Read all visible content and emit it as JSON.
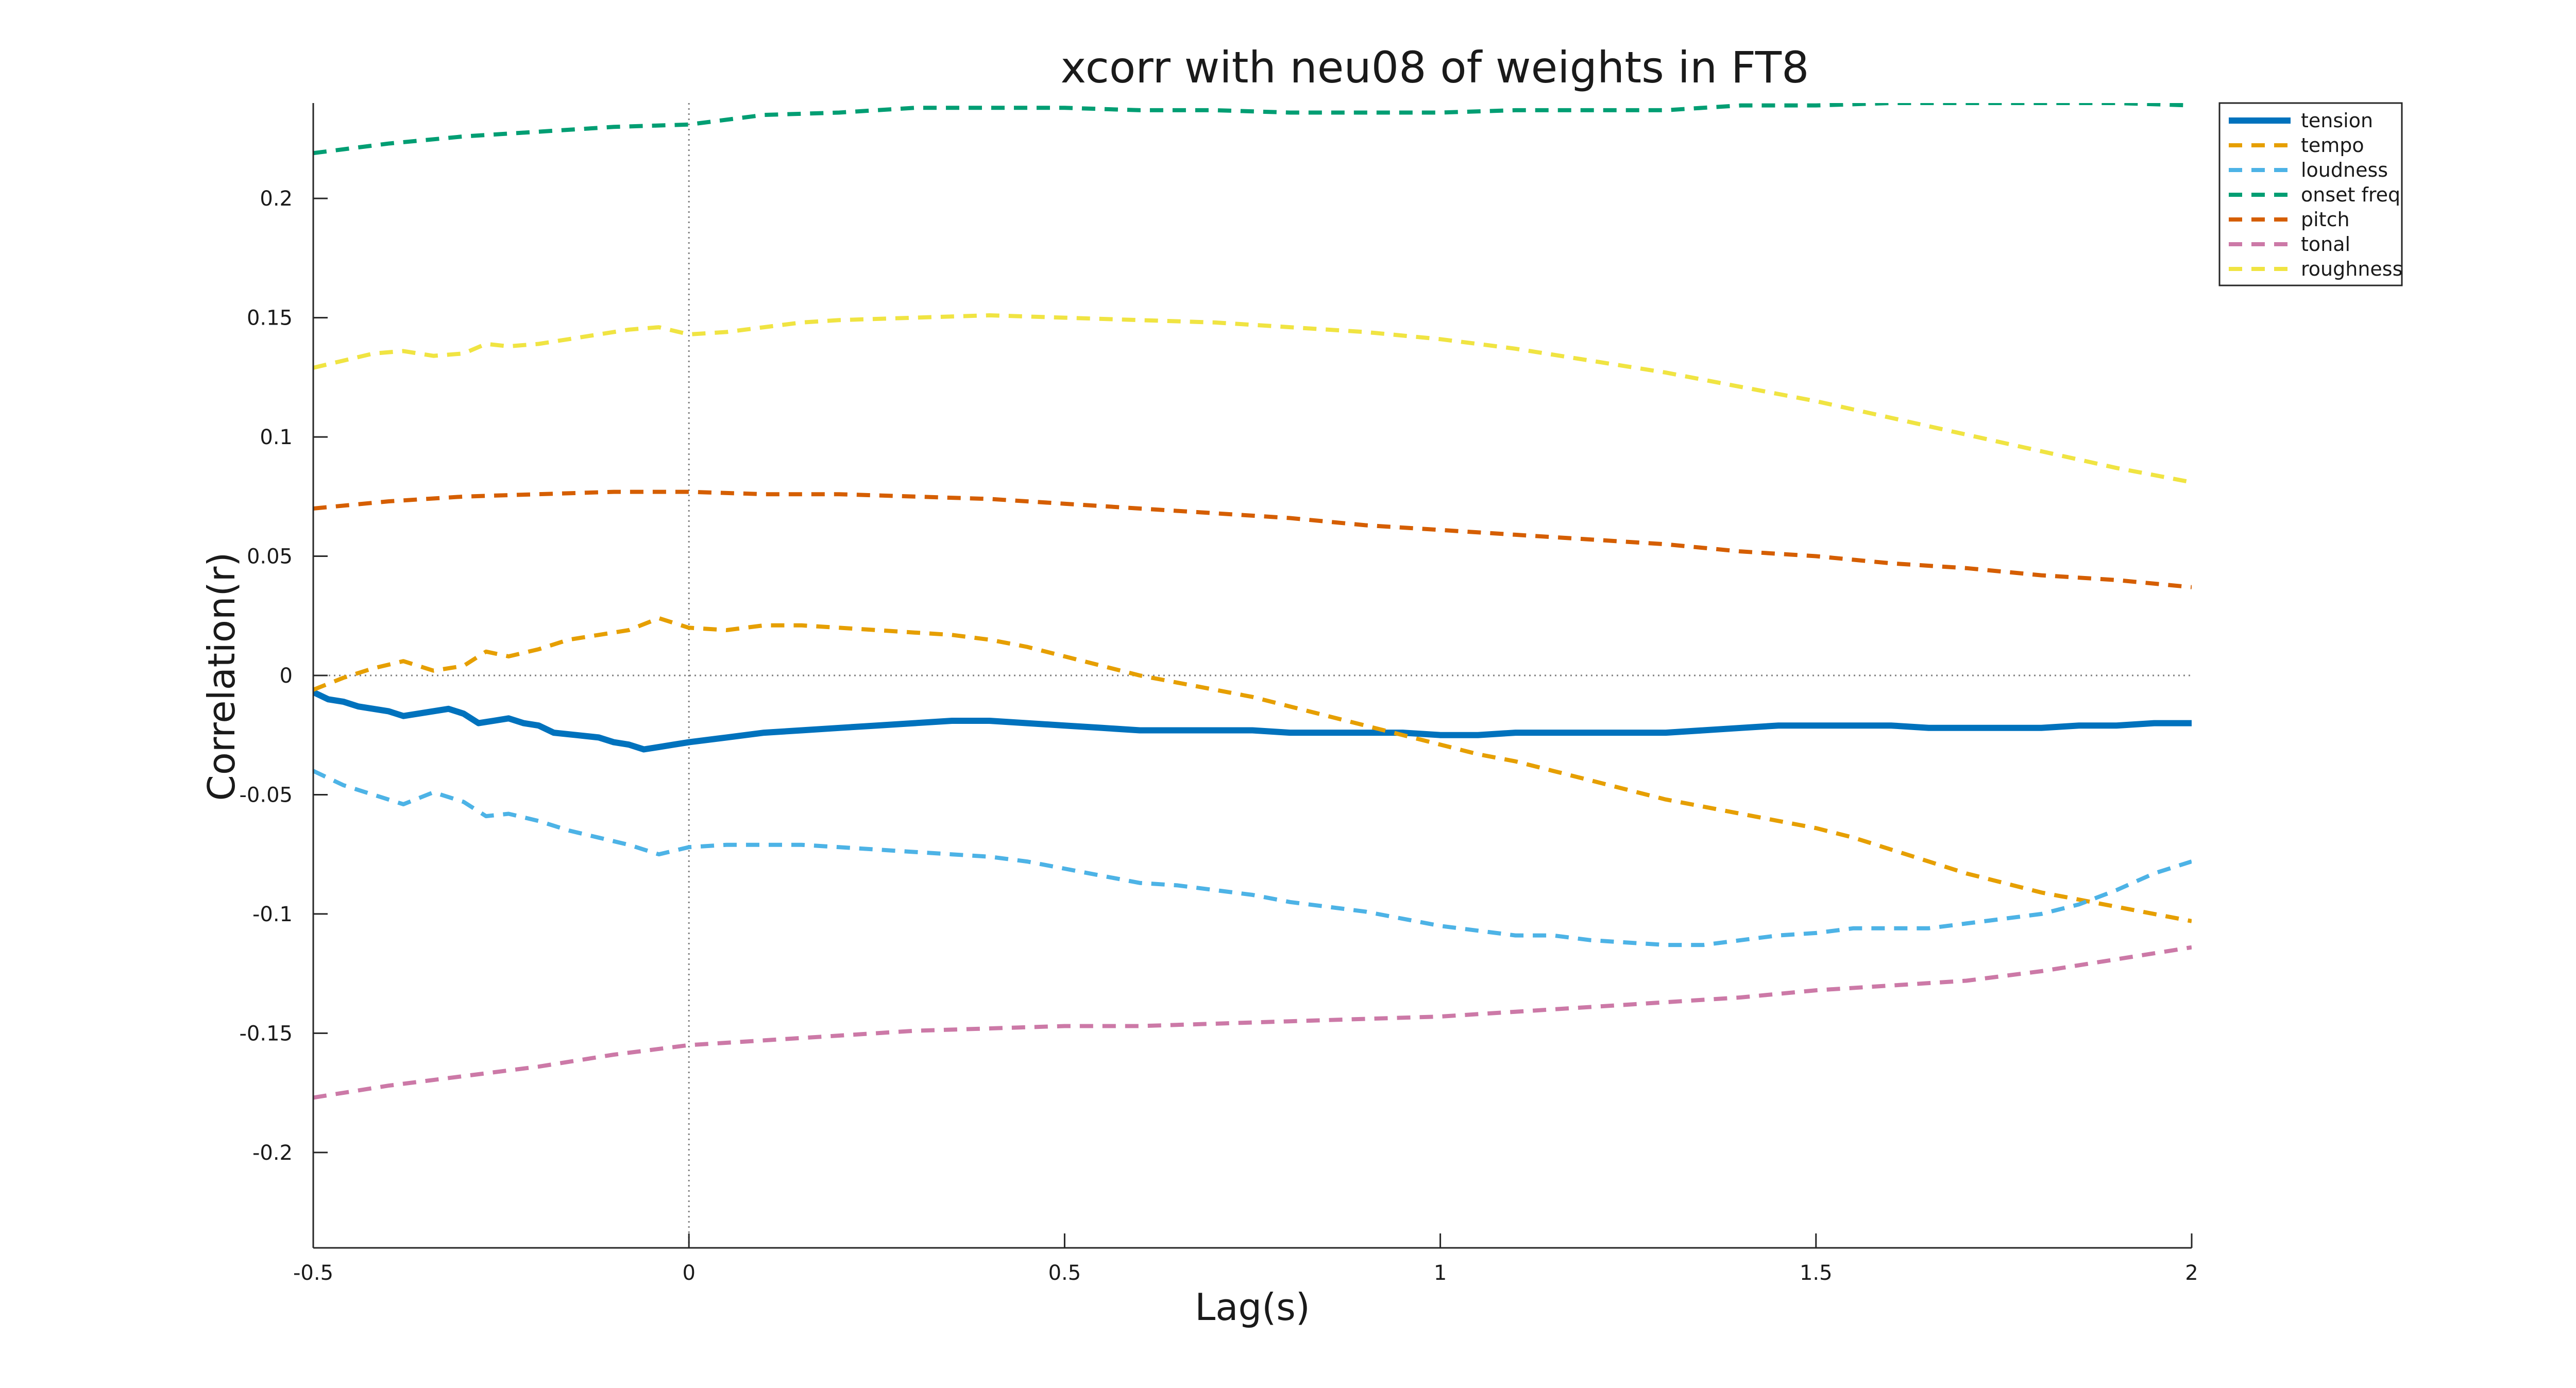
{
  "chart_data": {
    "type": "line",
    "title": "xcorr with neu08 of weights in FT8",
    "xlabel": "Lag(s)",
    "ylabel": "Correlation(r)",
    "xlim": [
      -0.5,
      2
    ],
    "ylim": [
      -0.24,
      0.24
    ],
    "xticks": [
      -0.5,
      0,
      0.5,
      1,
      1.5,
      2
    ],
    "xtick_labels": [
      "-0.5",
      "0",
      "0.5",
      "1",
      "1.5",
      "2"
    ],
    "yticks": [
      -0.2,
      -0.15,
      -0.1,
      -0.05,
      0,
      0.05,
      0.1,
      0.15,
      0.2
    ],
    "ytick_labels": [
      "-0.2",
      "-0.15",
      "-0.1",
      "-0.05",
      "0",
      "0.05",
      "0.1",
      "0.15",
      "0.2"
    ],
    "grid": false,
    "reference_lines": {
      "x": 0,
      "y": 0
    },
    "legend_position": "top-right",
    "series": [
      {
        "name": "tension",
        "color": "#0072BD",
        "style": "solid",
        "x": [
          -0.5,
          -0.48,
          -0.46,
          -0.44,
          -0.42,
          -0.4,
          -0.38,
          -0.36,
          -0.34,
          -0.32,
          -0.3,
          -0.28,
          -0.26,
          -0.24,
          -0.22,
          -0.2,
          -0.18,
          -0.15,
          -0.12,
          -0.1,
          -0.08,
          -0.06,
          -0.04,
          -0.02,
          0,
          0.05,
          0.1,
          0.15,
          0.2,
          0.25,
          0.3,
          0.35,
          0.4,
          0.45,
          0.5,
          0.55,
          0.6,
          0.65,
          0.7,
          0.75,
          0.8,
          0.85,
          0.9,
          0.95,
          1,
          1.05,
          1.1,
          1.15,
          1.2,
          1.25,
          1.3,
          1.35,
          1.4,
          1.45,
          1.5,
          1.55,
          1.6,
          1.65,
          1.7,
          1.75,
          1.8,
          1.85,
          1.9,
          1.95,
          2
        ],
        "y": [
          -0.007,
          -0.01,
          -0.011,
          -0.013,
          -0.014,
          -0.015,
          -0.017,
          -0.016,
          -0.015,
          -0.014,
          -0.016,
          -0.02,
          -0.019,
          -0.018,
          -0.02,
          -0.021,
          -0.024,
          -0.025,
          -0.026,
          -0.028,
          -0.029,
          -0.031,
          -0.03,
          -0.029,
          -0.028,
          -0.026,
          -0.024,
          -0.023,
          -0.022,
          -0.021,
          -0.02,
          -0.019,
          -0.019,
          -0.02,
          -0.021,
          -0.022,
          -0.023,
          -0.023,
          -0.023,
          -0.023,
          -0.024,
          -0.024,
          -0.024,
          -0.024,
          -0.025,
          -0.025,
          -0.024,
          -0.024,
          -0.024,
          -0.024,
          -0.024,
          -0.023,
          -0.022,
          -0.021,
          -0.021,
          -0.021,
          -0.021,
          -0.022,
          -0.022,
          -0.022,
          -0.022,
          -0.021,
          -0.021,
          -0.02,
          -0.02
        ]
      },
      {
        "name": "tempo",
        "color": "#E69F00",
        "style": "dashed",
        "x": [
          -0.5,
          -0.46,
          -0.42,
          -0.38,
          -0.34,
          -0.3,
          -0.27,
          -0.24,
          -0.2,
          -0.16,
          -0.12,
          -0.08,
          -0.04,
          0,
          0.05,
          0.1,
          0.15,
          0.2,
          0.25,
          0.3,
          0.35,
          0.4,
          0.45,
          0.5,
          0.55,
          0.6,
          0.65,
          0.7,
          0.75,
          0.8,
          0.85,
          0.9,
          0.95,
          1,
          1.05,
          1.1,
          1.15,
          1.2,
          1.25,
          1.3,
          1.35,
          1.4,
          1.45,
          1.5,
          1.55,
          1.6,
          1.65,
          1.7,
          1.75,
          1.8,
          1.85,
          1.9,
          1.95,
          2
        ],
        "y": [
          -0.006,
          -0.001,
          0.003,
          0.006,
          0.002,
          0.004,
          0.01,
          0.008,
          0.011,
          0.015,
          0.017,
          0.019,
          0.024,
          0.02,
          0.019,
          0.021,
          0.021,
          0.02,
          0.019,
          0.018,
          0.017,
          0.015,
          0.012,
          0.008,
          0.004,
          0.0,
          -0.003,
          -0.006,
          -0.009,
          -0.013,
          -0.017,
          -0.021,
          -0.025,
          -0.029,
          -0.033,
          -0.036,
          -0.04,
          -0.044,
          -0.048,
          -0.052,
          -0.055,
          -0.058,
          -0.061,
          -0.064,
          -0.068,
          -0.073,
          -0.078,
          -0.083,
          -0.087,
          -0.091,
          -0.094,
          -0.097,
          -0.1,
          -0.103
        ]
      },
      {
        "name": "loudness",
        "color": "#4DB3E6",
        "style": "dashed",
        "x": [
          -0.5,
          -0.46,
          -0.42,
          -0.38,
          -0.34,
          -0.3,
          -0.27,
          -0.24,
          -0.2,
          -0.16,
          -0.12,
          -0.08,
          -0.04,
          0,
          0.05,
          0.1,
          0.15,
          0.2,
          0.25,
          0.3,
          0.35,
          0.4,
          0.45,
          0.5,
          0.55,
          0.6,
          0.65,
          0.7,
          0.75,
          0.8,
          0.85,
          0.9,
          0.95,
          1,
          1.05,
          1.1,
          1.15,
          1.2,
          1.25,
          1.3,
          1.35,
          1.4,
          1.45,
          1.5,
          1.55,
          1.6,
          1.65,
          1.7,
          1.75,
          1.8,
          1.85,
          1.9,
          1.95,
          2
        ],
        "y": [
          -0.04,
          -0.046,
          -0.05,
          -0.054,
          -0.049,
          -0.053,
          -0.059,
          -0.058,
          -0.061,
          -0.065,
          -0.068,
          -0.071,
          -0.075,
          -0.072,
          -0.071,
          -0.071,
          -0.071,
          -0.072,
          -0.073,
          -0.074,
          -0.075,
          -0.076,
          -0.078,
          -0.081,
          -0.084,
          -0.087,
          -0.088,
          -0.09,
          -0.092,
          -0.095,
          -0.097,
          -0.099,
          -0.102,
          -0.105,
          -0.107,
          -0.109,
          -0.109,
          -0.111,
          -0.112,
          -0.113,
          -0.113,
          -0.111,
          -0.109,
          -0.108,
          -0.106,
          -0.106,
          -0.106,
          -0.104,
          -0.102,
          -0.1,
          -0.096,
          -0.09,
          -0.083,
          -0.078
        ]
      },
      {
        "name": "onset freq",
        "color": "#009E73",
        "style": "dashed",
        "x": [
          -0.5,
          -0.4,
          -0.3,
          -0.2,
          -0.1,
          0,
          0.1,
          0.2,
          0.3,
          0.4,
          0.5,
          0.6,
          0.7,
          0.8,
          0.9,
          1,
          1.1,
          1.2,
          1.3,
          1.4,
          1.5,
          1.6,
          1.7,
          1.8,
          1.9,
          2
        ],
        "y": [
          0.219,
          0.223,
          0.226,
          0.228,
          0.23,
          0.231,
          0.235,
          0.236,
          0.238,
          0.238,
          0.238,
          0.237,
          0.237,
          0.236,
          0.236,
          0.236,
          0.237,
          0.237,
          0.237,
          0.239,
          0.239,
          0.24,
          0.24,
          0.24,
          0.24,
          0.239
        ]
      },
      {
        "name": "pitch",
        "color": "#D55E00",
        "style": "dashed",
        "x": [
          -0.5,
          -0.4,
          -0.3,
          -0.2,
          -0.1,
          0,
          0.1,
          0.2,
          0.3,
          0.4,
          0.5,
          0.6,
          0.7,
          0.8,
          0.9,
          1,
          1.1,
          1.2,
          1.3,
          1.4,
          1.5,
          1.6,
          1.7,
          1.8,
          1.9,
          2
        ],
        "y": [
          0.07,
          0.073,
          0.075,
          0.076,
          0.077,
          0.077,
          0.076,
          0.076,
          0.075,
          0.074,
          0.072,
          0.07,
          0.068,
          0.066,
          0.063,
          0.061,
          0.059,
          0.057,
          0.055,
          0.052,
          0.05,
          0.047,
          0.045,
          0.042,
          0.04,
          0.037
        ]
      },
      {
        "name": "tonal",
        "color": "#CC79A7",
        "style": "dashed",
        "x": [
          -0.5,
          -0.4,
          -0.3,
          -0.2,
          -0.1,
          0,
          0.1,
          0.2,
          0.3,
          0.4,
          0.5,
          0.6,
          0.7,
          0.8,
          0.9,
          1,
          1.1,
          1.2,
          1.3,
          1.4,
          1.5,
          1.6,
          1.7,
          1.8,
          1.9,
          2
        ],
        "y": [
          -0.177,
          -0.172,
          -0.168,
          -0.164,
          -0.159,
          -0.155,
          -0.153,
          -0.151,
          -0.149,
          -0.148,
          -0.147,
          -0.147,
          -0.146,
          -0.145,
          -0.144,
          -0.143,
          -0.141,
          -0.139,
          -0.137,
          -0.135,
          -0.132,
          -0.13,
          -0.128,
          -0.124,
          -0.119,
          -0.114
        ]
      },
      {
        "name": "roughness",
        "color": "#F0E442",
        "style": "dashed",
        "x": [
          -0.5,
          -0.46,
          -0.42,
          -0.38,
          -0.34,
          -0.3,
          -0.27,
          -0.24,
          -0.2,
          -0.16,
          -0.12,
          -0.08,
          -0.04,
          0,
          0.05,
          0.1,
          0.15,
          0.2,
          0.3,
          0.4,
          0.5,
          0.6,
          0.7,
          0.8,
          0.9,
          1,
          1.1,
          1.2,
          1.3,
          1.4,
          1.5,
          1.6,
          1.7,
          1.8,
          1.9,
          2
        ],
        "y": [
          0.129,
          0.132,
          0.135,
          0.136,
          0.134,
          0.135,
          0.139,
          0.138,
          0.139,
          0.141,
          0.143,
          0.145,
          0.146,
          0.143,
          0.144,
          0.146,
          0.148,
          0.149,
          0.15,
          0.151,
          0.15,
          0.149,
          0.148,
          0.146,
          0.144,
          0.141,
          0.137,
          0.132,
          0.127,
          0.121,
          0.115,
          0.108,
          0.101,
          0.094,
          0.087,
          0.081
        ]
      }
    ]
  }
}
